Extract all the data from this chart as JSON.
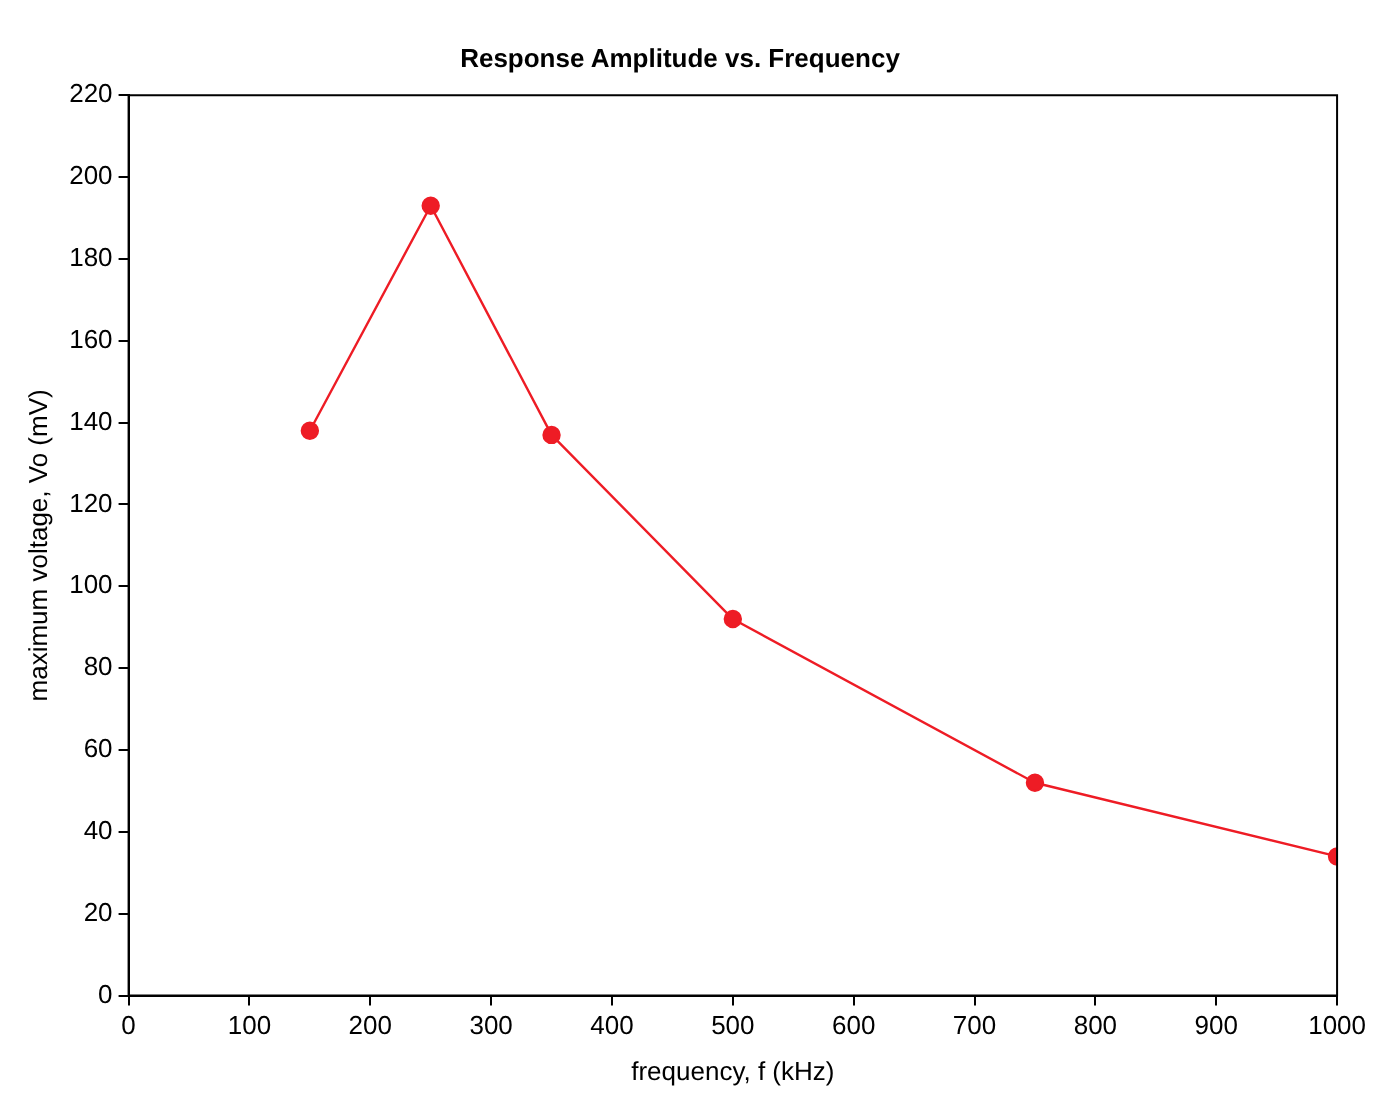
{
  "chart_data": {
    "type": "line",
    "title": "Response Amplitude vs. Frequency",
    "xlabel": "frequency, f (kHz)",
    "ylabel": "maximum voltage, Vo (mV)",
    "x": [
      150,
      250,
      350,
      500,
      750,
      1000
    ],
    "series": [
      {
        "color": "#ee1c25",
        "values": [
          138,
          193,
          137,
          92,
          52,
          34
        ]
      }
    ],
    "xlim": [
      0,
      1000
    ],
    "xticks": [
      0,
      100,
      200,
      300,
      400,
      500,
      600,
      700,
      800,
      900,
      1000
    ],
    "ylim": [
      0,
      220
    ],
    "yticks": [
      0,
      20,
      40,
      60,
      80,
      100,
      120,
      140,
      160,
      180,
      200,
      220
    ],
    "grid": false,
    "legend": false,
    "marker": "circle",
    "line_style": "solid"
  }
}
